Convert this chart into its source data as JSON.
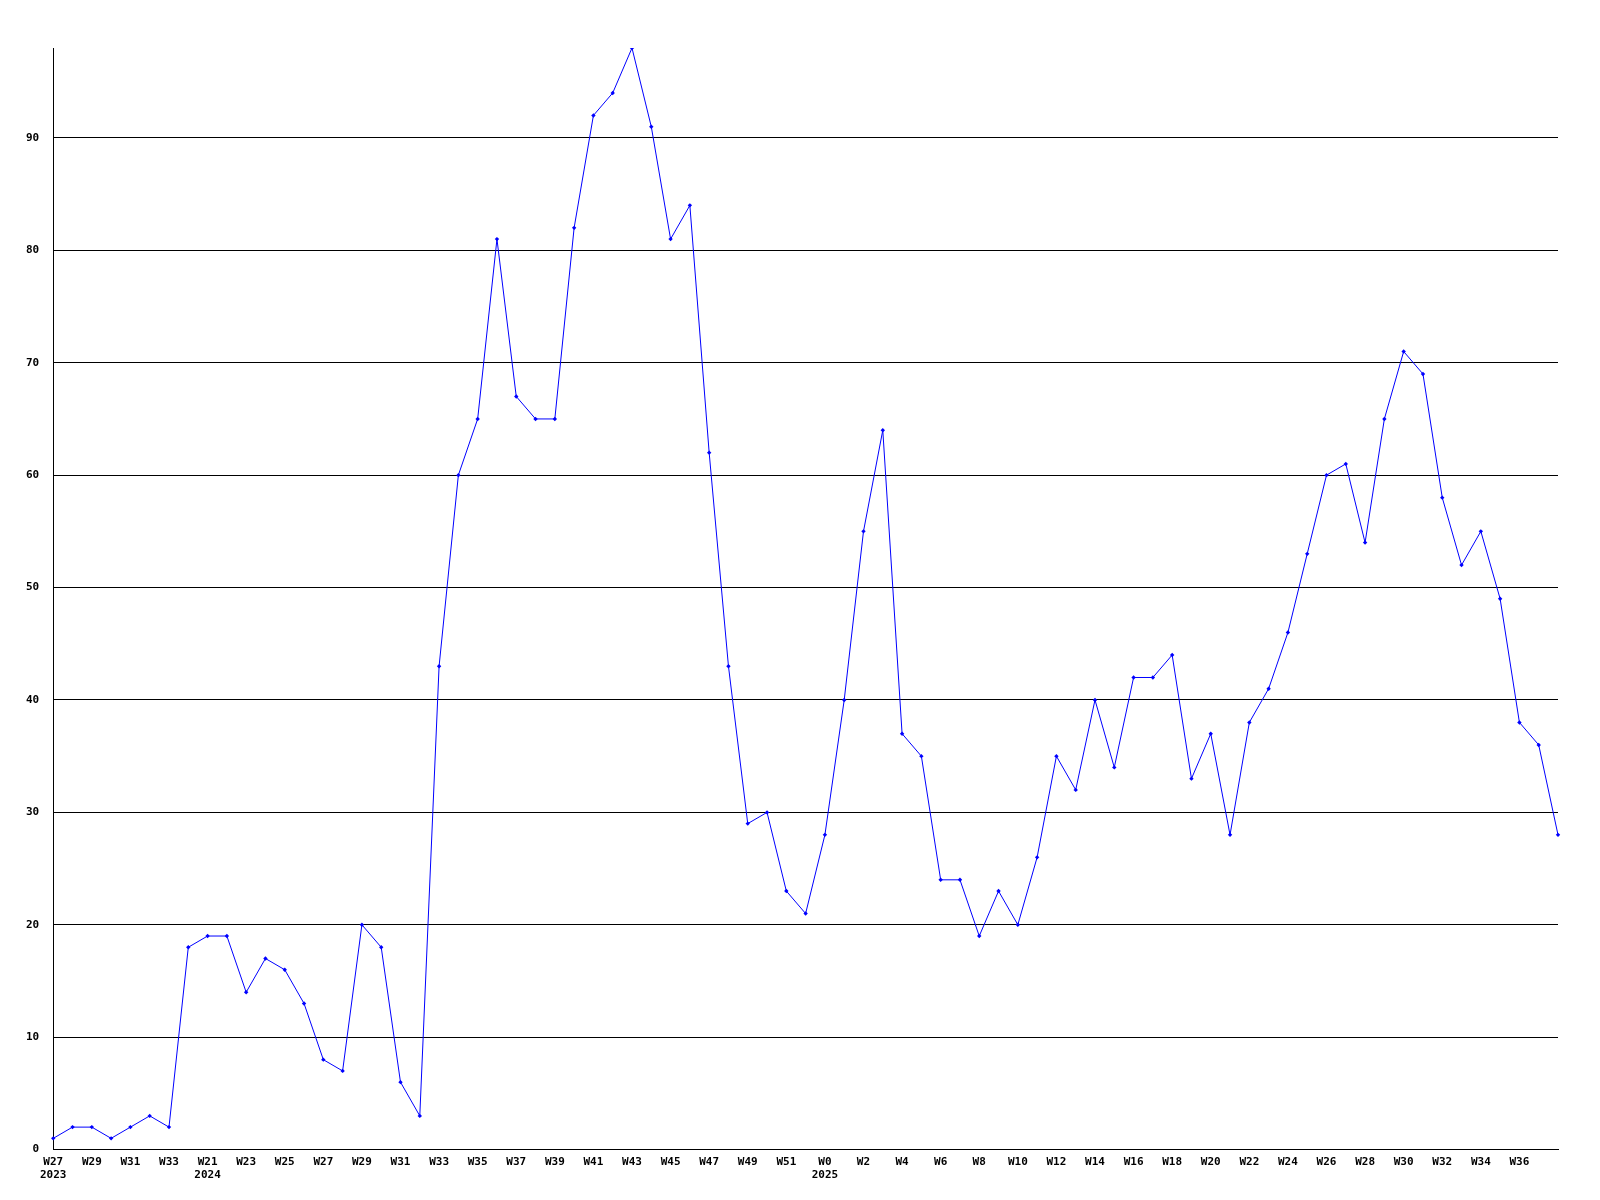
{
  "chart_data": {
    "type": "line",
    "categories": [
      "W27\n2023",
      null,
      "W29",
      null,
      "W31",
      null,
      "W33",
      null,
      "W21\n2024",
      null,
      "W23",
      null,
      "W25",
      null,
      "W27",
      null,
      "W29",
      null,
      "W31",
      null,
      "W33",
      null,
      "W35",
      null,
      "W37",
      null,
      "W39",
      null,
      "W41",
      null,
      "W43",
      null,
      "W45",
      null,
      "W47",
      null,
      "W49",
      null,
      "W51",
      null,
      "W0\n2025",
      null,
      "W2",
      null,
      "W4",
      null,
      "W6",
      null,
      "W8",
      null,
      "W10",
      null,
      "W12",
      null,
      "W14",
      null,
      "W16",
      null,
      "W18",
      null,
      "W20",
      null,
      "W22",
      null,
      "W24",
      null,
      "W26",
      null,
      "W28",
      null,
      "W30",
      null,
      "W32",
      null,
      "W34",
      null,
      "W36",
      null,
      null
    ],
    "series": [
      {
        "color": "#0000ff",
        "values": [
          1,
          2,
          2,
          1,
          2,
          3,
          2,
          18,
          19,
          19,
          14,
          17,
          16,
          13,
          8,
          7,
          20,
          18,
          6,
          3,
          43,
          60,
          65,
          81,
          67,
          65,
          65,
          82,
          92,
          94,
          98,
          91,
          81,
          84,
          62,
          43,
          29,
          30,
          23,
          21,
          28,
          40,
          55,
          64,
          37,
          35,
          24,
          24,
          19,
          23,
          20,
          26,
          35,
          32,
          40,
          34,
          42,
          42,
          44,
          33,
          37,
          28,
          38,
          41,
          46,
          53,
          60,
          61,
          54,
          65,
          71,
          69,
          58,
          52,
          55,
          49,
          38,
          36,
          28
        ]
      }
    ],
    "ylim": [
      0,
      98
    ],
    "yticks": [
      0,
      10,
      20,
      30,
      40,
      50,
      60,
      70,
      80,
      90
    ],
    "grid": "y",
    "legend": false,
    "marker": "diamond",
    "line_style": "solid"
  }
}
